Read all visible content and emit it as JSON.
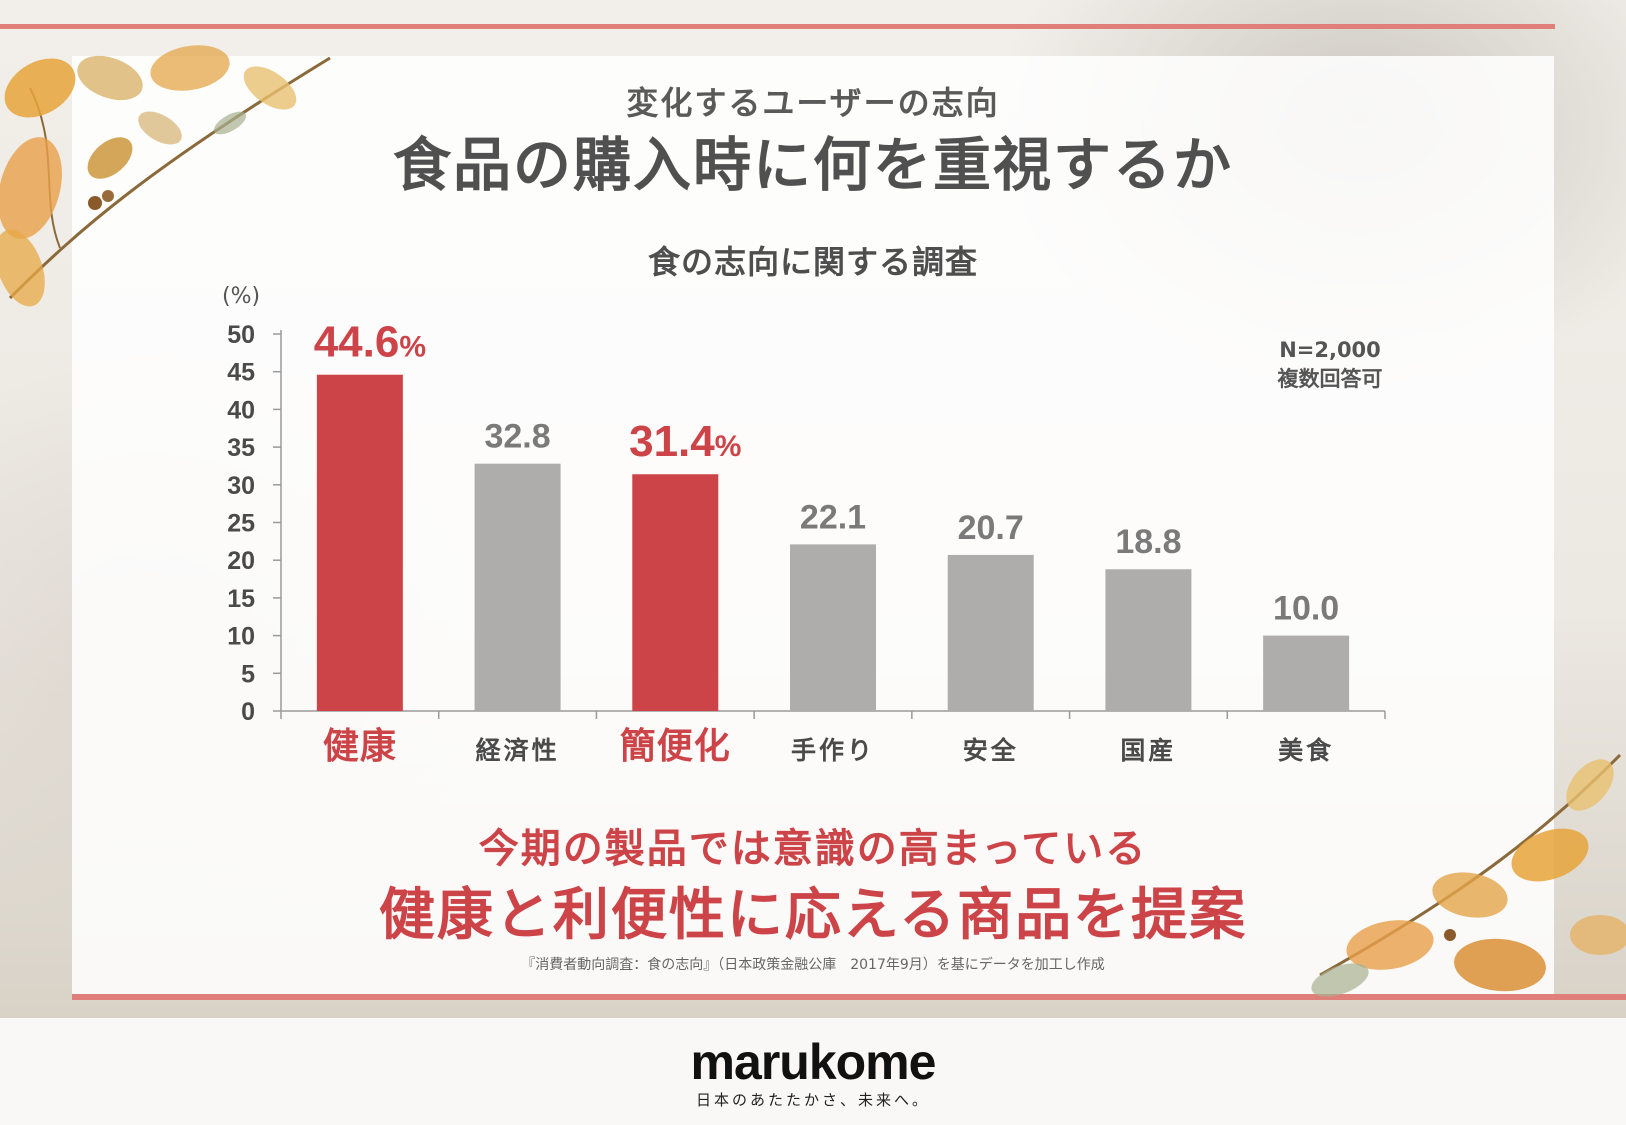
{
  "header": {
    "subtitle": "変化するユーザーの志向",
    "title": "食品の購入時に何を重視するか"
  },
  "chart_data": {
    "type": "bar",
    "title": "食の志向に関する調査",
    "ylabel": "(%)",
    "ylim": [
      0,
      50
    ],
    "yticks": [
      0,
      5,
      10,
      15,
      20,
      25,
      30,
      35,
      40,
      45,
      50
    ],
    "categories": [
      "健康",
      "経済性",
      "簡便化",
      "手作り",
      "安全",
      "国産",
      "美食"
    ],
    "values": [
      44.6,
      32.8,
      31.4,
      22.1,
      20.7,
      18.8,
      10.0
    ],
    "value_labels": [
      "44.6",
      "32.8",
      "31.4",
      "22.1",
      "20.7",
      "18.8",
      "10.0"
    ],
    "highlighted": [
      true,
      false,
      true,
      false,
      false,
      false,
      false
    ],
    "highlight_suffix": "%",
    "note_lines": [
      "N=2,000",
      "複数回答可"
    ],
    "colors": {
      "highlight": "#cd4448",
      "normal": "#afadac",
      "axis": "#9a9a9a",
      "tick_text": "#4a4a4a",
      "value_text": "#7a7a7a"
    },
    "grid": false,
    "legend": "none"
  },
  "conclusion": {
    "line1": "今期の製品では意識の高まっている",
    "line2": "健康と利便性に応える商品を提案"
  },
  "source": "『消費者動向調査：食の志向』（日本政策金融公庫　2017年9月）を基にデータを加工し作成",
  "footer": {
    "logo": "marukome",
    "tagline": "日本のあたたかさ、未来へ。"
  },
  "theme": {
    "accent_line": "#e07f7a",
    "accent_text": "#cc4448"
  }
}
